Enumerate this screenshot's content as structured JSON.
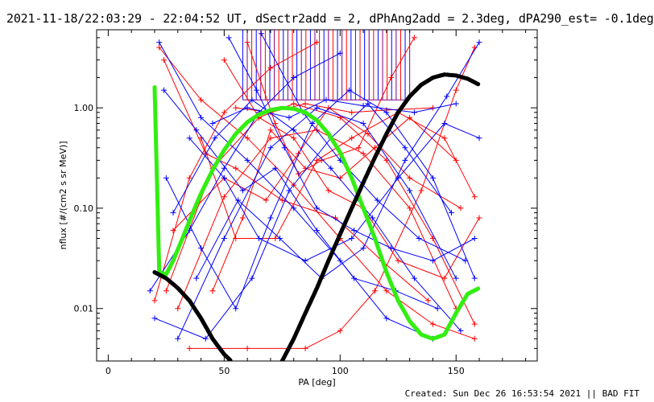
{
  "header": {
    "title": "2021-11-18/22:03:29 - 22:04:52 UT, dSectr2add = 2, dPhAng2add = 2.3deg, dPA290_est= -0.1deg"
  },
  "footer": {
    "created": "Created: Sun Dec 26 16:53:54 2021 || BAD FIT"
  },
  "chart_data": {
    "type": "scatter",
    "title": "2021-11-18/22:03:29 - 22:04:52 UT, dSectr2add = 2, dPhAng2add = 2.3deg, dPA290_est= -0.1deg",
    "xlabel": "PA [deg]",
    "ylabel": "nflux [#/(cm2 s sr MeV)]",
    "xlim": [
      -5,
      185
    ],
    "ylim": [
      0.003,
      6.0
    ],
    "yscale": "log",
    "x_ticks": [
      0,
      50,
      100,
      150
    ],
    "x_tick_labels": [
      "0",
      "50",
      "100",
      "150"
    ],
    "y_ticks": [
      0.01,
      0.1,
      1.0
    ],
    "y_tick_labels": [
      "0.01",
      "0.10",
      "1.00"
    ],
    "grid": false,
    "colors": {
      "red": "#ff0000",
      "blue": "#0000ff",
      "green": "#33ee11",
      "black": "#000000",
      "purple": "#800080"
    },
    "series": [
      {
        "color": "red",
        "marker": "+",
        "lines": [
          [
            [
              20,
              0.012
            ],
            [
              35,
              0.2
            ],
            [
              50,
              0.9
            ],
            [
              70,
              2.5
            ],
            [
              90,
              4.5
            ]
          ],
          [
            [
              25,
              0.015
            ],
            [
              45,
              0.25
            ],
            [
              65,
              0.8
            ],
            [
              80,
              1.1
            ],
            [
              100,
              0.8
            ],
            [
              120,
              0.3
            ],
            [
              140,
              0.05
            ],
            [
              158,
              0.007
            ]
          ],
          [
            [
              30,
              0.01
            ],
            [
              50,
              0.13
            ],
            [
              70,
              0.5
            ],
            [
              90,
              0.6
            ],
            [
              110,
              0.35
            ],
            [
              130,
              0.1
            ],
            [
              150,
              0.01
            ]
          ],
          [
            [
              22,
              4.0
            ],
            [
              40,
              1.2
            ],
            [
              60,
              0.5
            ],
            [
              80,
              0.17
            ],
            [
              100,
              0.05
            ],
            [
              120,
              0.015
            ],
            [
              140,
              0.007
            ],
            [
              158,
              0.005
            ]
          ],
          [
            [
              24,
              3.0
            ],
            [
              42,
              0.35
            ],
            [
              55,
              0.25
            ],
            [
              75,
              0.12
            ],
            [
              98,
              0.08
            ],
            [
              118,
              0.03
            ],
            [
              138,
              0.012
            ]
          ],
          [
            [
              35,
              0.004
            ],
            [
              60,
              0.004
            ],
            [
              85,
              0.004
            ],
            [
              100,
              0.006
            ],
            [
              115,
              0.015
            ],
            [
              135,
              0.15
            ],
            [
              150,
              1.5
            ],
            [
              158,
              4.0
            ]
          ],
          [
            [
              40,
              0.5
            ],
            [
              55,
              0.05
            ],
            [
              72,
              0.05
            ],
            [
              90,
              0.3
            ],
            [
              105,
              0.5
            ],
            [
              125,
              0.9
            ],
            [
              145,
              0.5
            ],
            [
              158,
              0.13
            ]
          ],
          [
            [
              28,
              0.06
            ],
            [
              50,
              0.2
            ],
            [
              68,
              0.12
            ],
            [
              82,
              0.35
            ],
            [
              95,
              1.0
            ],
            [
              112,
              0.55
            ],
            [
              130,
              0.2
            ],
            [
              152,
              0.1
            ]
          ],
          [
            [
              55,
              1.0
            ],
            [
              70,
              0.9
            ],
            [
              85,
              1.1
            ],
            [
              105,
              0.9
            ],
            [
              120,
              0.95
            ],
            [
              140,
              1.0
            ]
          ],
          [
            [
              60,
              4.5
            ],
            [
              72,
              0.7
            ],
            [
              82,
              0.22
            ],
            [
              92,
              0.3
            ],
            [
              108,
              0.4
            ],
            [
              122,
              2.0
            ],
            [
              132,
              5.0
            ]
          ],
          [
            [
              50,
              3.0
            ],
            [
              65,
              0.8
            ],
            [
              80,
              0.5
            ],
            [
              95,
              0.15
            ],
            [
              110,
              0.1
            ],
            [
              125,
              0.03
            ],
            [
              145,
              0.02
            ],
            [
              160,
              0.08
            ]
          ],
          [
            [
              45,
              0.015
            ],
            [
              58,
              0.08
            ],
            [
              70,
              0.6
            ],
            [
              85,
              0.25
            ],
            [
              100,
              0.2
            ],
            [
              115,
              0.4
            ],
            [
              130,
              0.8
            ],
            [
              150,
              0.3
            ]
          ]
        ]
      },
      {
        "color": "blue",
        "marker": "+",
        "lines": [
          [
            [
              18,
              0.015
            ],
            [
              35,
              0.06
            ],
            [
              50,
              0.25
            ],
            [
              65,
              0.9
            ],
            [
              80,
              2.0
            ],
            [
              100,
              3.5
            ]
          ],
          [
            [
              22,
              4.5
            ],
            [
              40,
              0.8
            ],
            [
              60,
              0.3
            ],
            [
              80,
              0.1
            ],
            [
              100,
              0.03
            ],
            [
              120,
              0.008
            ],
            [
              140,
              0.005
            ]
          ],
          [
            [
              30,
              0.005
            ],
            [
              50,
              0.05
            ],
            [
              70,
              0.4
            ],
            [
              90,
              1.0
            ],
            [
              110,
              0.7
            ],
            [
              130,
              0.15
            ],
            [
              150,
              0.02
            ]
          ],
          [
            [
              25,
              0.2
            ],
            [
              40,
              0.04
            ],
            [
              55,
              0.01
            ],
            [
              70,
              0.08
            ],
            [
              88,
              0.7
            ],
            [
              104,
              1.5
            ],
            [
              120,
              0.9
            ],
            [
              140,
              0.2
            ],
            [
              158,
              0.02
            ]
          ],
          [
            [
              35,
              0.5
            ],
            [
              50,
              0.2
            ],
            [
              65,
              0.05
            ],
            [
              85,
              0.03
            ],
            [
              105,
              0.05
            ],
            [
              125,
              0.2
            ],
            [
              145,
              0.7
            ],
            [
              160,
              0.5
            ]
          ],
          [
            [
              20,
              0.008
            ],
            [
              42,
              0.005
            ],
            [
              62,
              0.02
            ],
            [
              78,
              0.15
            ],
            [
              96,
              0.5
            ],
            [
              112,
              1.1
            ],
            [
              128,
              0.4
            ],
            [
              148,
              0.09
            ]
          ],
          [
            [
              45,
              0.7
            ],
            [
              60,
              1.0
            ],
            [
              78,
              0.8
            ],
            [
              94,
              1.2
            ],
            [
              110,
              1.05
            ],
            [
              132,
              0.9
            ],
            [
              150,
              1.1
            ]
          ],
          [
            [
              52,
              5.0
            ],
            [
              64,
              1.5
            ],
            [
              76,
              0.4
            ],
            [
              90,
              0.1
            ],
            [
              106,
              0.06
            ],
            [
              122,
              0.04
            ],
            [
              140,
              0.03
            ],
            [
              158,
              0.05
            ]
          ],
          [
            [
              28,
              0.09
            ],
            [
              46,
              0.5
            ],
            [
              62,
              1.2
            ],
            [
              80,
              0.6
            ],
            [
              96,
              0.25
            ],
            [
              114,
              0.08
            ],
            [
              132,
              0.02
            ],
            [
              152,
              0.006
            ]
          ],
          [
            [
              38,
              0.02
            ],
            [
              56,
              0.12
            ],
            [
              74,
              0.05
            ],
            [
              92,
              0.02
            ],
            [
              110,
              0.04
            ],
            [
              128,
              0.3
            ],
            [
              146,
              1.3
            ],
            [
              160,
              4.5
            ]
          ],
          [
            [
              24,
              1.5
            ],
            [
              38,
              0.6
            ],
            [
              58,
              0.15
            ],
            [
              72,
              0.25
            ],
            [
              90,
              0.06
            ],
            [
              106,
              0.02
            ],
            [
              124,
              0.015
            ],
            [
              142,
              0.01
            ]
          ],
          [
            [
              66,
              5.5
            ],
            [
              84,
              0.9
            ],
            [
              100,
              0.3
            ],
            [
              116,
              0.12
            ],
            [
              134,
              0.05
            ],
            [
              154,
              0.03
            ]
          ]
        ]
      },
      {
        "color": "green",
        "name": "",
        "points_fn": "model_green",
        "x": [
          20,
          22,
          25,
          28,
          32,
          36,
          40,
          45,
          50,
          55,
          60,
          65,
          70,
          75,
          80,
          85,
          90,
          95,
          100,
          105,
          110,
          115,
          120,
          125,
          130,
          135,
          140,
          145,
          150,
          155,
          160
        ],
        "y": [
          1.6,
          0.023,
          0.022,
          0.03,
          0.05,
          0.085,
          0.14,
          0.24,
          0.38,
          0.55,
          0.72,
          0.86,
          0.95,
          1.0,
          0.98,
          0.9,
          0.75,
          0.55,
          0.36,
          0.2,
          0.1,
          0.05,
          0.023,
          0.012,
          0.0075,
          0.0055,
          0.005,
          0.0055,
          0.009,
          0.014,
          0.016
        ]
      },
      {
        "color": "black",
        "name": "",
        "x": [
          20,
          25,
          30,
          35,
          40,
          45,
          50,
          53,
          75,
          80,
          85,
          90,
          95,
          100,
          105,
          110,
          115,
          120,
          125,
          130,
          135,
          140,
          145,
          150,
          155,
          160
        ],
        "y": [
          0.023,
          0.02,
          0.016,
          0.012,
          0.008,
          0.005,
          0.0035,
          0.003,
          0.003,
          0.005,
          0.009,
          0.016,
          0.03,
          0.055,
          0.1,
          0.18,
          0.32,
          0.55,
          0.9,
          1.3,
          1.7,
          2.0,
          2.15,
          2.1,
          1.95,
          1.7
        ]
      }
    ],
    "vertical_lines": {
      "x_start": 58,
      "x_end": 130,
      "count": 38,
      "y_bottom": 1.2,
      "y_top": 6.0
    }
  }
}
